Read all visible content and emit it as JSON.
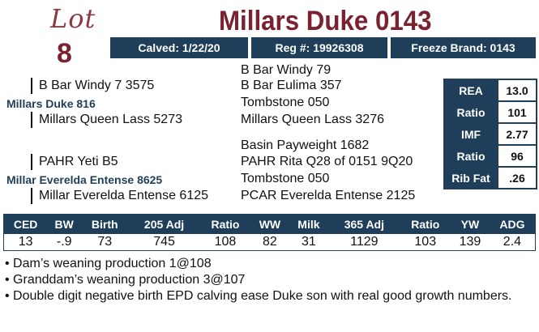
{
  "lot": {
    "script_label": "Lot",
    "number": "8"
  },
  "title": "Millars Duke 0143",
  "info_bar": {
    "calved": "Calved: 1/22/20",
    "reg": "Reg #: 19926308",
    "freeze_brand": "Freeze Brand: 0143"
  },
  "pedigree": {
    "sire_sire_sire": "B Bar Windy 79",
    "sire_sire": "B Bar Windy 7 3575",
    "sire_sire_dam": "B Bar Eulima 357",
    "sire": "Millars Duke 816",
    "sire_dam_sire": "Tombstone 050",
    "sire_dam": "Millars Queen Lass 5273",
    "sire_dam_dam": "Millars Queen Lass 3276",
    "dam_sire_sire": "Basin Payweight 1682",
    "dam_sire": "PAHR Yeti B5",
    "dam_sire_dam": "PAHR Rita Q28 of 0151 9Q20",
    "dam": "Millar Everelda Entense 8625",
    "dam_dam_sire": "Tombstone 050",
    "dam_dam": "Millar Everelda Entense 6125",
    "dam_dam_dam": "PCAR Everelda Entense 2125"
  },
  "carcass": [
    {
      "label": "REA",
      "value": "13.0"
    },
    {
      "label": "Ratio",
      "value": "101"
    },
    {
      "label": "IMF",
      "value": "2.77"
    },
    {
      "label": "Ratio",
      "value": "96"
    },
    {
      "label": "Rib Fat",
      "value": ".26"
    }
  ],
  "epd": {
    "headers": [
      "CED",
      "BW",
      "Birth",
      "205 Adj",
      "Ratio",
      "WW",
      "Milk",
      "365 Adj",
      "Ratio",
      "YW",
      "ADG"
    ],
    "values": [
      "13",
      "-.9",
      "73",
      "745",
      "108",
      "82",
      "31",
      "1129",
      "103",
      "139",
      "2.4"
    ]
  },
  "notes": [
    "• Dam’s weaning production 1@108",
    "• Granddam’s weaning production 3@107",
    "• Double digit negative birth EPD calving ease Duke son with real good growth numbers."
  ]
}
